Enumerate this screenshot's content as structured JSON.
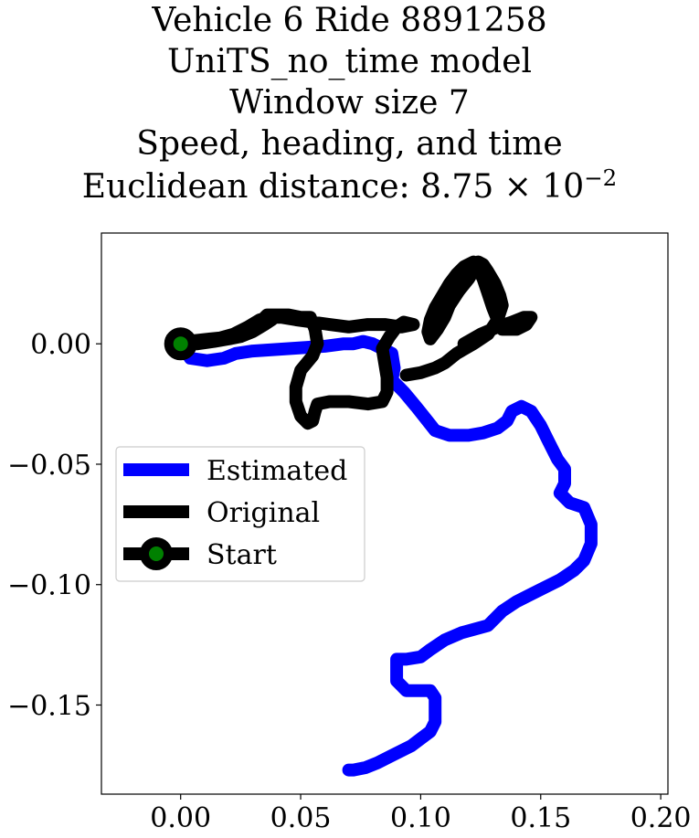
{
  "title": {
    "line1": "Vehicle 6 Ride 8891258",
    "line2": "UniTS_no_time model",
    "line3": "Window size 7",
    "line4": "Speed, heading, and time",
    "line5_prefix": "Euclidean distance: 8.75",
    "line5_times": "×",
    "line5_base": "10",
    "line5_exp": "−2"
  },
  "chart_data": {
    "type": "line",
    "title": "Vehicle 6 Ride 8891258 / UniTS_no_time model / Window size 7 / Speed, heading, and time / Euclidean distance: 8.75×10^-2",
    "xlabel": "",
    "ylabel": "",
    "xlim": [
      -0.033,
      0.203
    ],
    "ylim": [
      -0.187,
      0.046
    ],
    "x_ticks": [
      0.0,
      0.05,
      0.1,
      0.15,
      0.2
    ],
    "x_tick_labels": [
      "0.00",
      "0.05",
      "0.10",
      "0.15",
      "0.20"
    ],
    "y_ticks": [
      0.0,
      -0.05,
      -0.1,
      -0.15
    ],
    "y_tick_labels": [
      "0.00",
      "−0.05",
      "−0.10",
      "−0.15"
    ],
    "grid": false,
    "legend_position": "center-left",
    "legend": [
      "Estimated",
      "Original",
      "Start"
    ],
    "series": [
      {
        "name": "Estimated",
        "color": "#0000ff",
        "points": [
          [
            0.0,
            0.0
          ],
          [
            0.004,
            -0.006
          ],
          [
            0.011,
            -0.007
          ],
          [
            0.018,
            -0.006
          ],
          [
            0.023,
            -0.004
          ],
          [
            0.03,
            -0.003
          ],
          [
            0.045,
            -0.002
          ],
          [
            0.06,
            -0.001
          ],
          [
            0.068,
            0.0
          ],
          [
            0.072,
            0.0
          ],
          [
            0.076,
            0.001
          ],
          [
            0.08,
            0.0
          ],
          [
            0.084,
            -0.002
          ],
          [
            0.088,
            -0.004
          ],
          [
            0.089,
            -0.01
          ],
          [
            0.088,
            -0.015
          ],
          [
            0.093,
            -0.02
          ],
          [
            0.098,
            -0.026
          ],
          [
            0.102,
            -0.031
          ],
          [
            0.106,
            -0.036
          ],
          [
            0.112,
            -0.038
          ],
          [
            0.12,
            -0.038
          ],
          [
            0.126,
            -0.037
          ],
          [
            0.132,
            -0.035
          ],
          [
            0.136,
            -0.032
          ],
          [
            0.138,
            -0.028
          ],
          [
            0.142,
            -0.026
          ],
          [
            0.146,
            -0.028
          ],
          [
            0.15,
            -0.034
          ],
          [
            0.153,
            -0.04
          ],
          [
            0.157,
            -0.048
          ],
          [
            0.16,
            -0.052
          ],
          [
            0.16,
            -0.058
          ],
          [
            0.158,
            -0.062
          ],
          [
            0.162,
            -0.066
          ],
          [
            0.168,
            -0.068
          ],
          [
            0.171,
            -0.075
          ],
          [
            0.171,
            -0.083
          ],
          [
            0.168,
            -0.09
          ],
          [
            0.164,
            -0.094
          ],
          [
            0.158,
            -0.098
          ],
          [
            0.152,
            -0.101
          ],
          [
            0.146,
            -0.104
          ],
          [
            0.14,
            -0.107
          ],
          [
            0.134,
            -0.111
          ],
          [
            0.128,
            -0.117
          ],
          [
            0.117,
            -0.12
          ],
          [
            0.11,
            -0.123
          ],
          [
            0.104,
            -0.127
          ],
          [
            0.1,
            -0.13
          ],
          [
            0.094,
            -0.131
          ],
          [
            0.09,
            -0.131
          ],
          [
            0.09,
            -0.135
          ],
          [
            0.09,
            -0.14
          ],
          [
            0.094,
            -0.144
          ],
          [
            0.1,
            -0.144
          ],
          [
            0.104,
            -0.144
          ],
          [
            0.106,
            -0.147
          ],
          [
            0.106,
            -0.152
          ],
          [
            0.106,
            -0.157
          ],
          [
            0.104,
            -0.161
          ],
          [
            0.1,
            -0.164
          ],
          [
            0.096,
            -0.167
          ],
          [
            0.088,
            -0.171
          ],
          [
            0.082,
            -0.174
          ],
          [
            0.077,
            -0.176
          ],
          [
            0.072,
            -0.177
          ],
          [
            0.07,
            -0.177
          ]
        ]
      },
      {
        "name": "Original",
        "color": "#000000",
        "points": [
          [
            0.0,
            0.0
          ],
          [
            0.007,
            0.0
          ],
          [
            0.014,
            0.001
          ],
          [
            0.02,
            0.002
          ],
          [
            0.025,
            0.003
          ],
          [
            0.03,
            0.005
          ],
          [
            0.033,
            0.009
          ],
          [
            0.036,
            0.012
          ],
          [
            0.04,
            0.012
          ],
          [
            0.045,
            0.012
          ],
          [
            0.05,
            0.011
          ],
          [
            0.054,
            0.011
          ],
          [
            0.056,
            0.006
          ],
          [
            0.057,
            0.0
          ],
          [
            0.055,
            -0.005
          ],
          [
            0.05,
            -0.011
          ],
          [
            0.048,
            -0.018
          ],
          [
            0.048,
            -0.024
          ],
          [
            0.05,
            -0.03
          ],
          [
            0.053,
            -0.033
          ],
          [
            0.055,
            -0.032
          ],
          [
            0.056,
            -0.028
          ],
          [
            0.057,
            -0.025
          ],
          [
            0.062,
            -0.024
          ],
          [
            0.07,
            -0.024
          ],
          [
            0.078,
            -0.025
          ],
          [
            0.084,
            -0.024
          ],
          [
            0.086,
            -0.02
          ],
          [
            0.086,
            -0.014
          ],
          [
            0.085,
            -0.008
          ],
          [
            0.084,
            -0.002
          ],
          [
            0.087,
            0.003
          ],
          [
            0.09,
            0.007
          ],
          [
            0.093,
            0.009
          ],
          [
            0.097,
            0.008
          ],
          [
            0.092,
            0.007
          ],
          [
            0.085,
            0.008
          ],
          [
            0.078,
            0.008
          ],
          [
            0.07,
            0.007
          ],
          [
            0.062,
            0.008
          ],
          [
            0.055,
            0.009
          ],
          [
            0.048,
            0.01
          ],
          [
            0.042,
            0.011
          ],
          [
            0.037,
            0.011
          ],
          [
            0.033,
            0.01
          ],
          [
            0.028,
            0.007
          ],
          [
            0.022,
            0.004
          ],
          [
            0.015,
            0.002
          ],
          [
            0.008,
            0.001
          ],
          [
            0.003,
            0.001
          ],
          [
            0.012,
            0.002
          ],
          [
            0.022,
            0.003
          ],
          [
            0.03,
            0.005
          ],
          [
            0.035,
            0.008
          ],
          [
            0.038,
            0.01
          ]
        ],
        "points_b": [
          [
            0.094,
            -0.013
          ],
          [
            0.1,
            -0.012
          ],
          [
            0.106,
            -0.01
          ],
          [
            0.11,
            -0.008
          ],
          [
            0.115,
            -0.004
          ],
          [
            0.122,
            0.0
          ],
          [
            0.128,
            0.004
          ],
          [
            0.132,
            0.01
          ],
          [
            0.134,
            0.016
          ],
          [
            0.133,
            0.02
          ],
          [
            0.131,
            0.025
          ],
          [
            0.128,
            0.03
          ],
          [
            0.126,
            0.033
          ],
          [
            0.124,
            0.034
          ],
          [
            0.123,
            0.032
          ],
          [
            0.12,
            0.027
          ],
          [
            0.116,
            0.022
          ],
          [
            0.112,
            0.016
          ],
          [
            0.11,
            0.011
          ],
          [
            0.107,
            0.006
          ],
          [
            0.104,
            0.002
          ],
          [
            0.103,
            0.005
          ],
          [
            0.104,
            0.01
          ],
          [
            0.106,
            0.015
          ],
          [
            0.109,
            0.02
          ],
          [
            0.112,
            0.025
          ],
          [
            0.115,
            0.029
          ],
          [
            0.118,
            0.032
          ],
          [
            0.122,
            0.034
          ],
          [
            0.124,
            0.031
          ],
          [
            0.126,
            0.027
          ],
          [
            0.128,
            0.021
          ],
          [
            0.13,
            0.015
          ],
          [
            0.132,
            0.01
          ],
          [
            0.134,
            0.006
          ],
          [
            0.14,
            0.006
          ],
          [
            0.144,
            0.008
          ],
          [
            0.146,
            0.011
          ],
          [
            0.143,
            0.011
          ],
          [
            0.138,
            0.009
          ],
          [
            0.132,
            0.007
          ],
          [
            0.125,
            0.004
          ],
          [
            0.118,
            0.0
          ]
        ]
      }
    ],
    "start_point": [
      0.0,
      0.0
    ],
    "start_marker_colors": {
      "edge": "#000000",
      "face": "#008000"
    }
  }
}
